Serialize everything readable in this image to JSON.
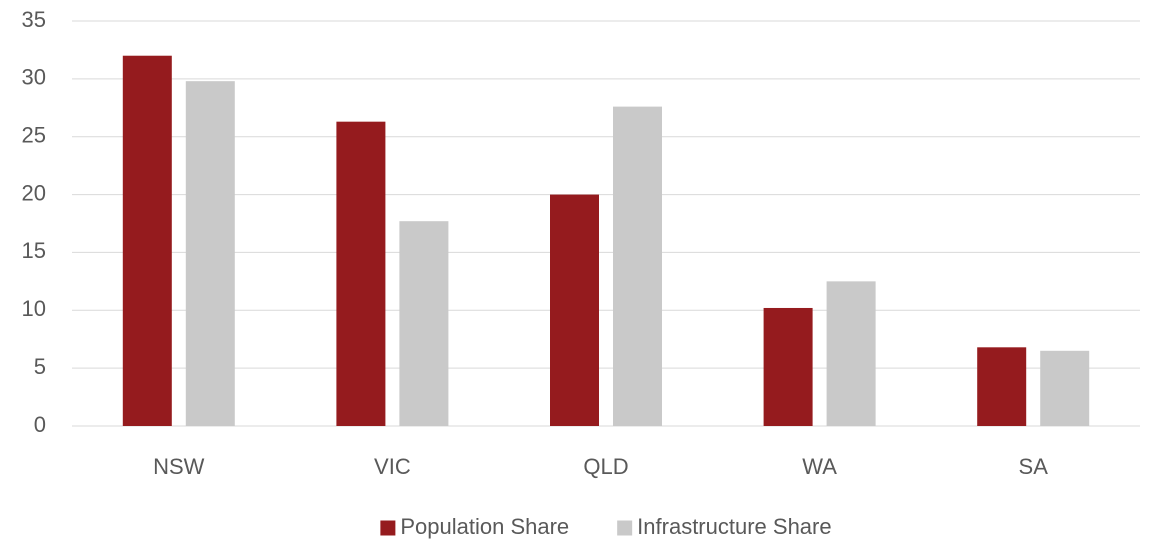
{
  "chart_data": {
    "type": "bar",
    "categories": [
      "NSW",
      "VIC",
      "QLD",
      "WA",
      "SA"
    ],
    "series": [
      {
        "name": "Population Share",
        "color": "#951b1e",
        "values": [
          32.0,
          26.3,
          20.0,
          10.2,
          6.8
        ]
      },
      {
        "name": "Infrastructure Share",
        "color": "#c9c9c9",
        "values": [
          29.8,
          17.7,
          27.6,
          12.5,
          6.5
        ]
      }
    ],
    "ylim": [
      0,
      35
    ],
    "yticks": [
      0,
      5,
      10,
      15,
      20,
      25,
      30,
      35
    ],
    "grid": true,
    "legend": "bottom"
  }
}
